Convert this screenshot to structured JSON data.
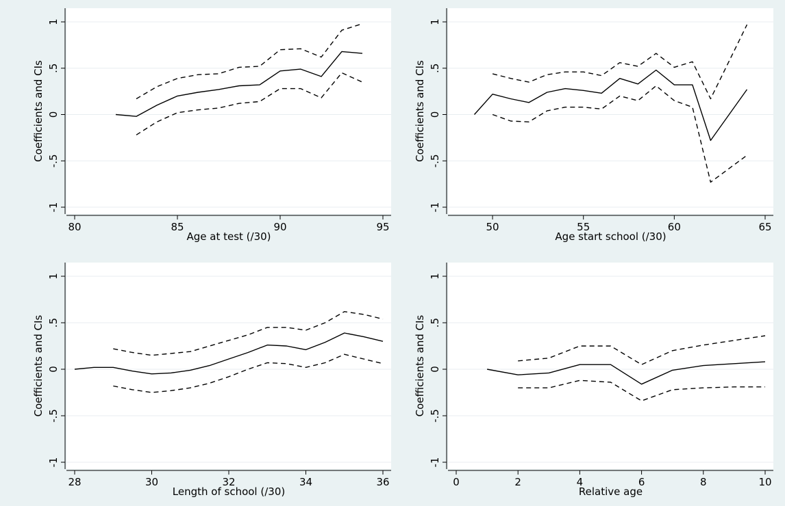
{
  "chart_data": [
    {
      "type": "line",
      "xlabel": "Age at test (/30)",
      "ylabel": "Coefficients and CIs",
      "xlim": [
        80,
        95
      ],
      "xticks": [
        80,
        85,
        90,
        95
      ],
      "ylim": [
        -1,
        1
      ],
      "yticks": [
        -1,
        -0.5,
        0,
        0.5,
        1
      ],
      "ytick_labels": [
        "-1",
        "-.5",
        "0",
        ".5",
        "1"
      ],
      "grid": true,
      "series": [
        {
          "style": "solid",
          "x": [
            82,
            83,
            84,
            85,
            86,
            87,
            88,
            89,
            90,
            91,
            92,
            93,
            94
          ],
          "y": [
            0.0,
            -0.02,
            0.1,
            0.2,
            0.24,
            0.27,
            0.31,
            0.32,
            0.47,
            0.49,
            0.41,
            0.68,
            0.66
          ]
        },
        {
          "style": "dashed",
          "x": [
            83,
            84,
            85,
            86,
            87,
            88,
            89,
            90,
            91,
            92,
            93,
            94
          ],
          "y": [
            0.17,
            0.3,
            0.39,
            0.43,
            0.44,
            0.51,
            0.52,
            0.7,
            0.71,
            0.62,
            0.91,
            0.98
          ]
        },
        {
          "style": "dashed",
          "x": [
            83,
            84,
            85,
            86,
            87,
            88,
            89,
            90,
            91,
            92,
            93,
            94
          ],
          "y": [
            -0.22,
            -0.08,
            0.02,
            0.05,
            0.07,
            0.12,
            0.14,
            0.28,
            0.28,
            0.18,
            0.45,
            0.35
          ]
        }
      ]
    },
    {
      "type": "line",
      "xlabel": "Age start school (/30)",
      "ylabel": "Coefficients and CIs",
      "xlim": [
        48,
        65
      ],
      "xticks": [
        50,
        55,
        60,
        65
      ],
      "ylim": [
        -1,
        1
      ],
      "yticks": [
        -1,
        -0.5,
        0,
        0.5,
        1
      ],
      "ytick_labels": [
        "-1",
        "-.5",
        "0",
        ".5",
        "1"
      ],
      "grid": true,
      "series": [
        {
          "style": "solid",
          "x": [
            49,
            50,
            51,
            52,
            53,
            54,
            55,
            56,
            57,
            58,
            59,
            60,
            61,
            62,
            64
          ],
          "y": [
            0.0,
            0.22,
            0.17,
            0.13,
            0.24,
            0.28,
            0.26,
            0.23,
            0.39,
            0.33,
            0.48,
            0.32,
            0.32,
            -0.28,
            0.27
          ]
        },
        {
          "style": "dashed",
          "x": [
            50,
            51,
            52,
            53,
            54,
            55,
            56,
            57,
            58,
            59,
            60,
            61,
            62,
            64
          ],
          "y": [
            0.44,
            0.39,
            0.35,
            0.43,
            0.46,
            0.46,
            0.42,
            0.56,
            0.52,
            0.66,
            0.51,
            0.57,
            0.17,
            0.97
          ]
        },
        {
          "style": "dashed",
          "x": [
            50,
            51,
            52,
            53,
            54,
            55,
            56,
            57,
            58,
            59,
            60,
            61,
            62,
            64
          ],
          "y": [
            0.0,
            -0.07,
            -0.08,
            0.04,
            0.08,
            0.08,
            0.06,
            0.2,
            0.15,
            0.31,
            0.15,
            0.08,
            -0.73,
            -0.44
          ]
        }
      ]
    },
    {
      "type": "line",
      "xlabel": "Length of school (/30)",
      "ylabel": "Coefficients and CIs",
      "xlim": [
        28,
        36
      ],
      "xticks": [
        28,
        30,
        32,
        34,
        36
      ],
      "ylim": [
        -1,
        1
      ],
      "yticks": [
        -1,
        -0.5,
        0,
        0.5,
        1
      ],
      "ytick_labels": [
        "-1",
        "-.5",
        "0",
        ".5",
        "1"
      ],
      "grid": true,
      "series": [
        {
          "style": "solid",
          "x": [
            28,
            28.5,
            29,
            29.5,
            30,
            30.5,
            31,
            31.5,
            32,
            32.5,
            33,
            33.5,
            34,
            34.5,
            35,
            35.5,
            36
          ],
          "y": [
            0.0,
            0.02,
            0.02,
            -0.02,
            -0.05,
            -0.04,
            -0.01,
            0.04,
            0.11,
            0.18,
            0.26,
            0.25,
            0.21,
            0.29,
            0.39,
            0.35,
            0.3
          ]
        },
        {
          "style": "dashed",
          "x": [
            29,
            29.5,
            30,
            30.5,
            31,
            31.5,
            32,
            32.5,
            33,
            33.5,
            34,
            34.5,
            35,
            35.5,
            36
          ],
          "y": [
            0.22,
            0.18,
            0.15,
            0.17,
            0.19,
            0.25,
            0.31,
            0.37,
            0.45,
            0.45,
            0.42,
            0.5,
            0.62,
            0.59,
            0.54
          ]
        },
        {
          "style": "dashed",
          "x": [
            29,
            29.5,
            30,
            30.5,
            31,
            31.5,
            32,
            32.5,
            33,
            33.5,
            34,
            34.5,
            35,
            35.5,
            36
          ],
          "y": [
            -0.18,
            -0.22,
            -0.25,
            -0.23,
            -0.2,
            -0.15,
            -0.08,
            0.0,
            0.07,
            0.06,
            0.02,
            0.07,
            0.16,
            0.11,
            0.06
          ]
        }
      ]
    },
    {
      "type": "line",
      "xlabel": "Relative age",
      "ylabel": "Coefficients and CIs",
      "xlim": [
        0,
        10
      ],
      "xticks": [
        0,
        2,
        4,
        6,
        8,
        10
      ],
      "ylim": [
        -1,
        1
      ],
      "yticks": [
        -1,
        -0.5,
        0,
        0.5,
        1
      ],
      "ytick_labels": [
        "-1",
        "-.5",
        "0",
        ".5",
        "1"
      ],
      "grid": true,
      "series": [
        {
          "style": "solid",
          "x": [
            1,
            2,
            3,
            4,
            5,
            6,
            7,
            8,
            9,
            10
          ],
          "y": [
            0.0,
            -0.06,
            -0.04,
            0.05,
            0.05,
            -0.16,
            -0.01,
            0.04,
            0.06,
            0.08
          ]
        },
        {
          "style": "dashed",
          "x": [
            2,
            3,
            4,
            5,
            6,
            7,
            8,
            9,
            10
          ],
          "y": [
            0.09,
            0.12,
            0.25,
            0.25,
            0.05,
            0.2,
            0.26,
            0.31,
            0.36
          ]
        },
        {
          "style": "dashed",
          "x": [
            2,
            3,
            4,
            5,
            6,
            7,
            8,
            9,
            10
          ],
          "y": [
            -0.2,
            -0.2,
            -0.12,
            -0.14,
            -0.34,
            -0.22,
            -0.2,
            -0.19,
            -0.19
          ]
        }
      ]
    }
  ]
}
